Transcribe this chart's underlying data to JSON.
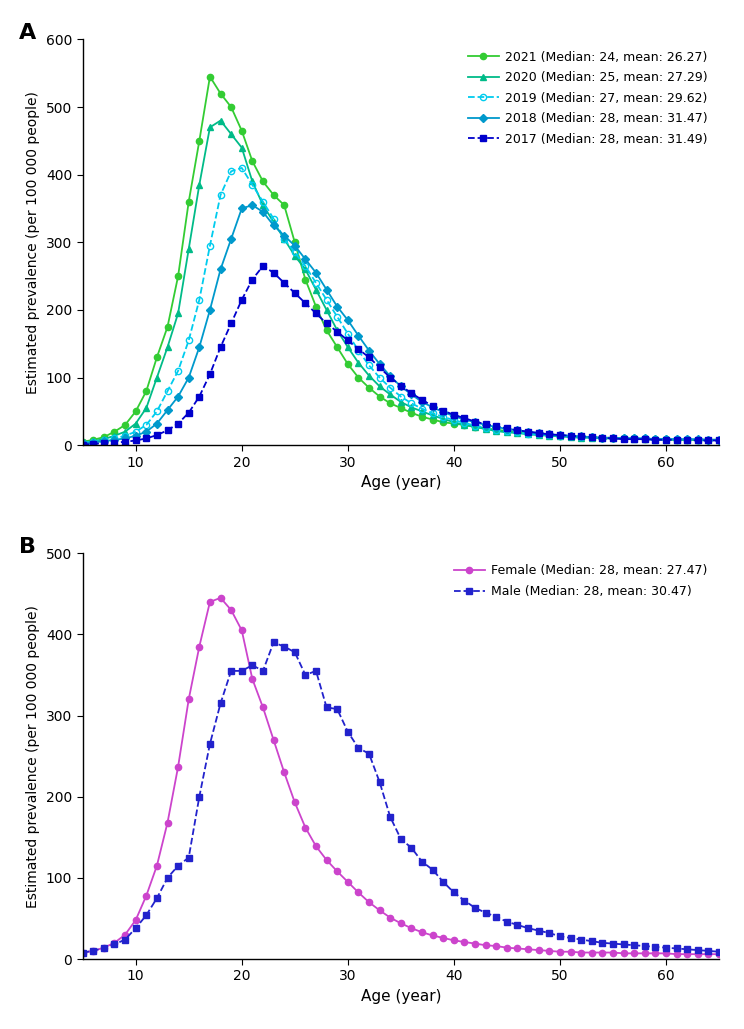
{
  "panel_A_label": "A",
  "panel_B_label": "B",
  "ages": [
    5,
    6,
    7,
    8,
    9,
    10,
    11,
    12,
    13,
    14,
    15,
    16,
    17,
    18,
    19,
    20,
    21,
    22,
    23,
    24,
    25,
    26,
    27,
    28,
    29,
    30,
    31,
    32,
    33,
    34,
    35,
    36,
    37,
    38,
    39,
    40,
    41,
    42,
    43,
    44,
    45,
    46,
    47,
    48,
    49,
    50,
    51,
    52,
    53,
    54,
    55,
    56,
    57,
    58,
    59,
    60,
    61,
    62,
    63,
    64,
    65
  ],
  "series_A": {
    "2021": {
      "color": "#33cc33",
      "linestyle": "-",
      "marker": "o",
      "markerfacecolor": "#33cc33",
      "label": "2021 (Median: 24, mean: 26.27)",
      "values": [
        5,
        8,
        12,
        20,
        30,
        50,
        80,
        130,
        175,
        250,
        360,
        450,
        545,
        520,
        500,
        465,
        420,
        390,
        370,
        355,
        300,
        245,
        205,
        170,
        145,
        120,
        100,
        85,
        72,
        62,
        55,
        48,
        42,
        38,
        34,
        32,
        30,
        27,
        25,
        23,
        21,
        19,
        18,
        17,
        15,
        14,
        13,
        12,
        12,
        11,
        11,
        10,
        10,
        9,
        9,
        9,
        8,
        8,
        8,
        8,
        8
      ]
    },
    "2020": {
      "color": "#00bb88",
      "linestyle": "-",
      "marker": "^",
      "markerfacecolor": "#00bb88",
      "label": "2020 (Median: 25, mean: 27.29)",
      "values": [
        4,
        6,
        9,
        14,
        20,
        32,
        55,
        100,
        145,
        195,
        290,
        385,
        470,
        480,
        460,
        440,
        390,
        355,
        330,
        305,
        280,
        260,
        230,
        200,
        170,
        145,
        122,
        103,
        87,
        75,
        64,
        56,
        50,
        44,
        39,
        34,
        30,
        27,
        24,
        21,
        19,
        18,
        16,
        15,
        14,
        13,
        12,
        11,
        11,
        10,
        10,
        10,
        9,
        9,
        8,
        8,
        8,
        8,
        8,
        8,
        8
      ]
    },
    "2019": {
      "color": "#00ccee",
      "linestyle": "--",
      "marker": "o",
      "markerfacecolor": "none",
      "markeredgecolor": "#00ccee",
      "label": "2019 (Median: 27, mean: 29.62)",
      "values": [
        4,
        5,
        7,
        10,
        14,
        20,
        30,
        50,
        80,
        110,
        155,
        215,
        295,
        370,
        405,
        410,
        385,
        360,
        335,
        305,
        285,
        265,
        240,
        215,
        190,
        165,
        140,
        118,
        100,
        85,
        72,
        62,
        54,
        47,
        42,
        37,
        33,
        29,
        26,
        23,
        21,
        19,
        17,
        16,
        15,
        14,
        13,
        12,
        12,
        11,
        11,
        10,
        10,
        10,
        9,
        9,
        9,
        9,
        8,
        8,
        8
      ]
    },
    "2018": {
      "color": "#0099cc",
      "linestyle": "-",
      "marker": "D",
      "markerfacecolor": "#0099cc",
      "label": "2018 (Median: 28, mean: 31.47)",
      "values": [
        3,
        4,
        6,
        8,
        10,
        14,
        20,
        32,
        52,
        72,
        100,
        145,
        200,
        260,
        305,
        350,
        355,
        345,
        325,
        310,
        295,
        275,
        255,
        230,
        205,
        185,
        162,
        140,
        120,
        102,
        87,
        75,
        64,
        56,
        49,
        43,
        38,
        34,
        30,
        27,
        24,
        22,
        20,
        18,
        16,
        15,
        14,
        13,
        12,
        11,
        11,
        10,
        10,
        10,
        9,
        9,
        9,
        9,
        9,
        8,
        8
      ]
    },
    "2017": {
      "color": "#0000cc",
      "linestyle": "--",
      "marker": "s",
      "markerfacecolor": "#0000cc",
      "label": "2017 (Median: 28, mean: 31.49)",
      "values": [
        1,
        2,
        3,
        4,
        5,
        7,
        10,
        15,
        22,
        32,
        48,
        72,
        105,
        145,
        180,
        215,
        245,
        265,
        255,
        240,
        225,
        210,
        195,
        180,
        168,
        155,
        142,
        130,
        115,
        100,
        88,
        77,
        67,
        58,
        51,
        45,
        40,
        35,
        31,
        28,
        25,
        22,
        20,
        18,
        16,
        15,
        14,
        13,
        12,
        11,
        10,
        9,
        9,
        9,
        8,
        8,
        8,
        8,
        7,
        7,
        7
      ]
    }
  },
  "series_B": {
    "Female": {
      "color": "#cc44cc",
      "linestyle": "-",
      "marker": "o",
      "markerfacecolor": "#cc44cc",
      "label": "Female (Median: 28, mean: 27.47)",
      "values": [
        8,
        10,
        14,
        20,
        30,
        48,
        78,
        115,
        168,
        237,
        320,
        385,
        440,
        445,
        430,
        405,
        345,
        310,
        270,
        230,
        193,
        162,
        139,
        122,
        108,
        95,
        82,
        70,
        60,
        51,
        44,
        38,
        33,
        29,
        26,
        23,
        21,
        19,
        17,
        16,
        14,
        13,
        12,
        11,
        10,
        9,
        9,
        8,
        8,
        8,
        8,
        7,
        7,
        7,
        7,
        7,
        6,
        6,
        6,
        6,
        6
      ]
    },
    "Male": {
      "color": "#2222cc",
      "linestyle": "--",
      "marker": "s",
      "markerfacecolor": "#2222cc",
      "label": "Male (Median: 28, mean: 30.47)",
      "values": [
        8,
        10,
        14,
        18,
        24,
        38,
        54,
        75,
        100,
        115,
        125,
        200,
        265,
        315,
        355,
        355,
        362,
        355,
        390,
        385,
        378,
        350,
        355,
        310,
        308,
        280,
        260,
        253,
        218,
        175,
        148,
        137,
        120,
        110,
        95,
        82,
        72,
        63,
        57,
        52,
        46,
        42,
        38,
        35,
        32,
        28,
        26,
        24,
        22,
        20,
        19,
        18,
        17,
        16,
        15,
        14,
        13,
        12,
        11,
        10,
        9
      ]
    }
  },
  "A_ylim": [
    0,
    600
  ],
  "A_yticks": [
    0,
    100,
    200,
    300,
    400,
    500,
    600
  ],
  "B_ylim": [
    0,
    500
  ],
  "B_yticks": [
    0,
    100,
    200,
    300,
    400,
    500
  ],
  "xlim": [
    5,
    65
  ],
  "xticks": [
    10,
    20,
    30,
    40,
    50,
    60
  ],
  "xlabel": "Age (year)",
  "ylabel": "Estimated prevalence (per 100 000 people)",
  "bg_color": "#ffffff"
}
